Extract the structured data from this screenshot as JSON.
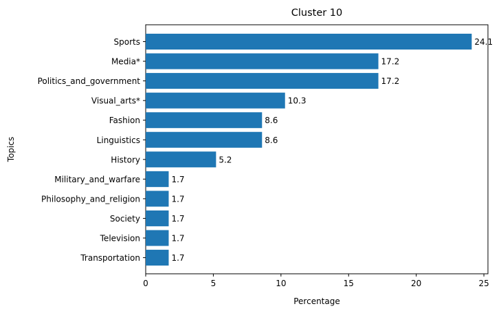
{
  "chart_data": {
    "type": "bar",
    "orientation": "horizontal",
    "title": "Cluster 10",
    "xlabel": "Percentage",
    "ylabel": "Topics",
    "categories": [
      "Sports",
      "Media*",
      "Politics_and_government",
      "Visual_arts*",
      "Fashion",
      "Linguistics",
      "History",
      "Military_and_warfare",
      "Philosophy_and_religion",
      "Society",
      "Television",
      "Transportation"
    ],
    "values": [
      24.1,
      17.2,
      17.2,
      10.3,
      8.6,
      8.6,
      5.2,
      1.7,
      1.7,
      1.7,
      1.7,
      1.7
    ],
    "data_labels": [
      "24.1",
      "17.2",
      "17.2",
      "10.3",
      "8.6",
      "8.6",
      "5.2",
      "1.7",
      "1.7",
      "1.7",
      "1.7",
      "1.7"
    ],
    "xticks": [
      0,
      5,
      10,
      15,
      20,
      25
    ],
    "xlim": [
      0,
      25.3
    ],
    "grid": false,
    "bar_color": "#1f77b4"
  }
}
